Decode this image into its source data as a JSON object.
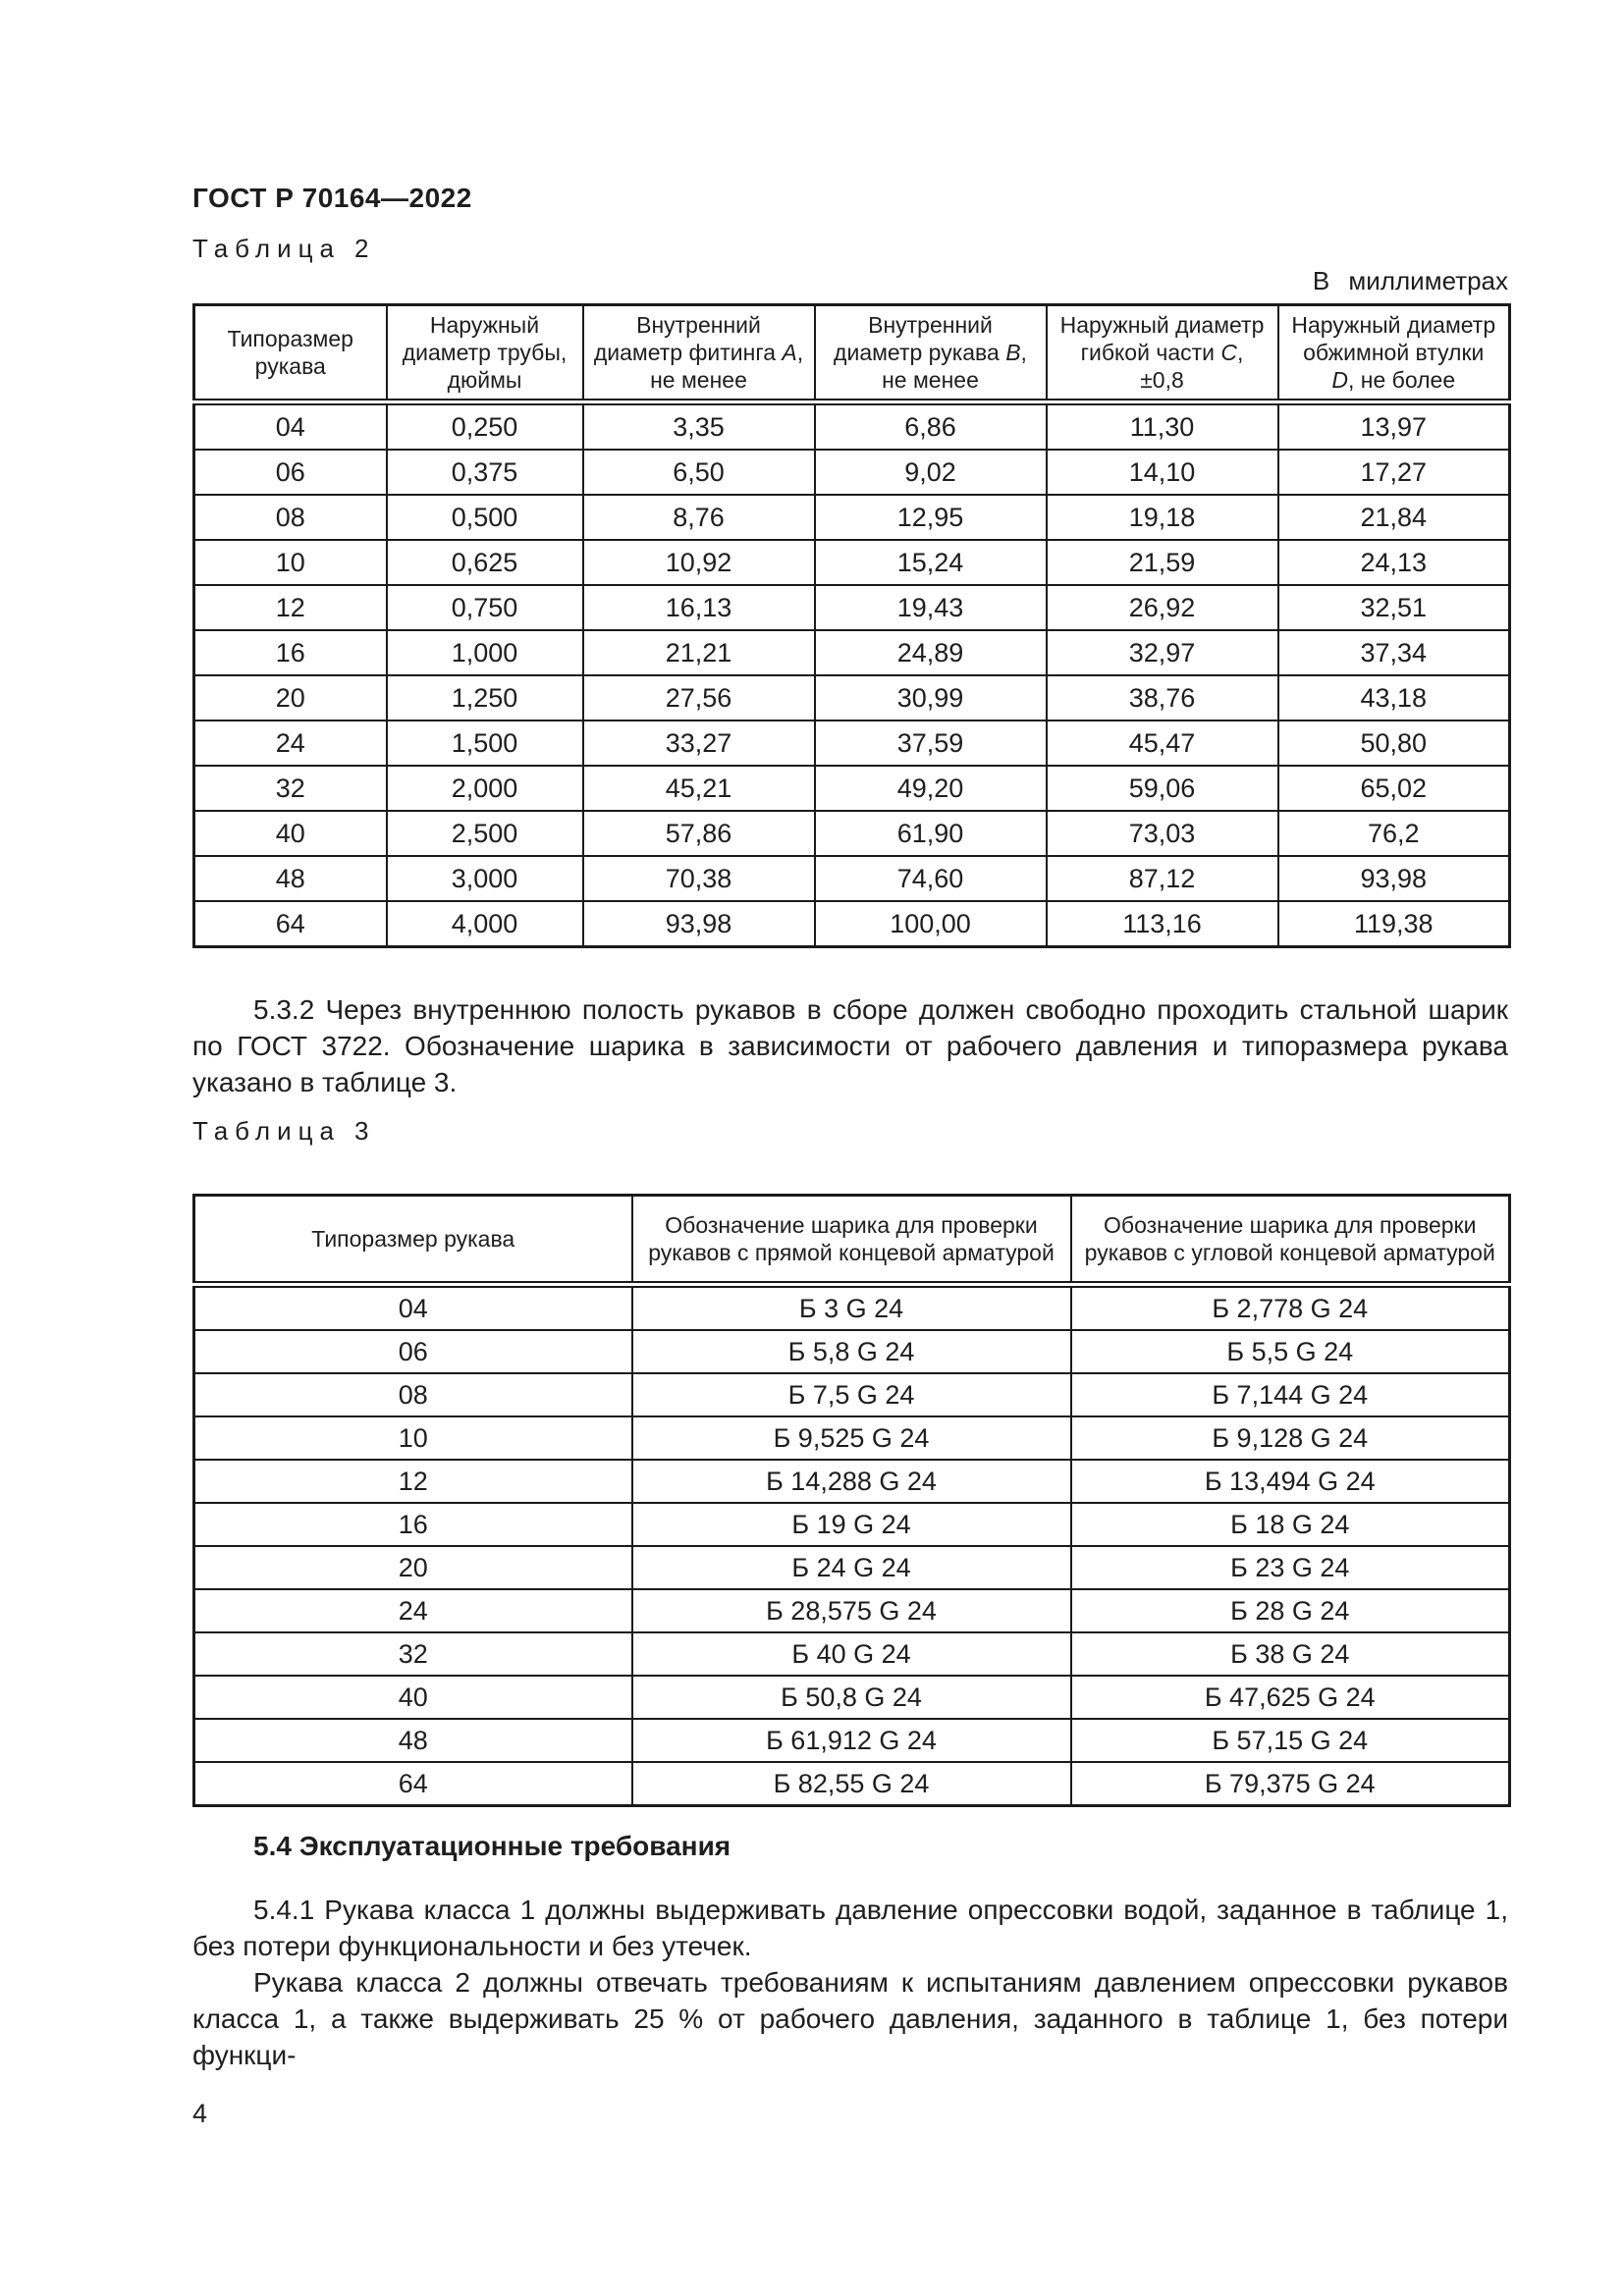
{
  "doc": {
    "number": "ГОСТ Р 70164—2022",
    "page_number": "4"
  },
  "table2": {
    "caption_word": "Таблица",
    "caption_number": "2",
    "units_note": "В миллиметрах",
    "headers": [
      [
        {
          "t": "Типоразмер рукава"
        }
      ],
      [
        {
          "t": "Наружный диаметр трубы, дюймы"
        }
      ],
      [
        {
          "t": "Внутренний диаметр фитинга "
        },
        {
          "t": "A",
          "i": true
        },
        {
          "t": ", не менее"
        }
      ],
      [
        {
          "t": "Внутренний диаметр рукава "
        },
        {
          "t": "B",
          "i": true
        },
        {
          "t": ", не менее"
        }
      ],
      [
        {
          "t": "Наружный диаметр гибкой части "
        },
        {
          "t": "C",
          "i": true
        },
        {
          "t": ","
        },
        {
          "br": true
        },
        {
          "t": "±0,8"
        }
      ],
      [
        {
          "t": "Наружный диаметр обжимной втулки"
        },
        {
          "br": true
        },
        {
          "t": "D",
          "i": true
        },
        {
          "t": ", не более"
        }
      ]
    ],
    "rows": [
      [
        "04",
        "0,250",
        "3,35",
        "6,86",
        "11,30",
        "13,97"
      ],
      [
        "06",
        "0,375",
        "6,50",
        "9,02",
        "14,10",
        "17,27"
      ],
      [
        "08",
        "0,500",
        "8,76",
        "12,95",
        "19,18",
        "21,84"
      ],
      [
        "10",
        "0,625",
        "10,92",
        "15,24",
        "21,59",
        "24,13"
      ],
      [
        "12",
        "0,750",
        "16,13",
        "19,43",
        "26,92",
        "32,51"
      ],
      [
        "16",
        "1,000",
        "21,21",
        "24,89",
        "32,97",
        "37,34"
      ],
      [
        "20",
        "1,250",
        "27,56",
        "30,99",
        "38,76",
        "43,18"
      ],
      [
        "24",
        "1,500",
        "33,27",
        "37,59",
        "45,47",
        "50,80"
      ],
      [
        "32",
        "2,000",
        "45,21",
        "49,20",
        "59,06",
        "65,02"
      ],
      [
        "40",
        "2,500",
        "57,86",
        "61,90",
        "73,03",
        "76,2"
      ],
      [
        "48",
        "3,000",
        "70,38",
        "74,60",
        "87,12",
        "93,98"
      ],
      [
        "64",
        "4,000",
        "93,98",
        "100,00",
        "113,16",
        "119,38"
      ]
    ]
  },
  "table3": {
    "caption_word": "Таблица",
    "caption_number": "3",
    "headers": [
      [
        {
          "t": "Типоразмер рукава"
        }
      ],
      [
        {
          "t": "Обозначение шарика для проверки рукавов с прямой концевой арматурой"
        }
      ],
      [
        {
          "t": "Обозначение шарика для проверки рукавов с угловой концевой арматурой"
        }
      ]
    ],
    "rows": [
      [
        "04",
        "Б 3 G 24",
        "Б 2,778 G 24"
      ],
      [
        "06",
        "Б 5,8 G 24",
        "Б 5,5 G 24"
      ],
      [
        "08",
        "Б 7,5 G 24",
        "Б 7,144 G 24"
      ],
      [
        "10",
        "Б 9,525 G 24",
        "Б 9,128 G 24"
      ],
      [
        "12",
        "Б 14,288 G 24",
        "Б 13,494 G 24"
      ],
      [
        "16",
        "Б 19 G 24",
        "Б 18 G 24"
      ],
      [
        "20",
        "Б 24 G 24",
        "Б 23 G 24"
      ],
      [
        "24",
        "Б 28,575 G 24",
        "Б 28 G 24"
      ],
      [
        "32",
        "Б 40 G 24",
        "Б 38 G 24"
      ],
      [
        "40",
        "Б 50,8 G 24",
        "Б 47,625 G 24"
      ],
      [
        "48",
        "Б 61,912 G 24",
        "Б 57,15 G 24"
      ],
      [
        "64",
        "Б 82,55 G 24",
        "Б 79,375 G 24"
      ]
    ]
  },
  "paragraphs": {
    "p532": "5.3.2 Через внутреннюю полость рукавов в сборе должен свободно проходить стальной шарик по ГОСТ 3722. Обозначение шарика в зависимости от рабочего давления и типоразмера рукава указано в таблице 3.",
    "h54": "5.4 Эксплуатационные требования",
    "p541": "5.4.1 Рукава класса 1 должны выдерживать давление опрессовки водой, заданное в таблице 1, без потери функциональности и без утечек.",
    "p541_cont": "Рукава класса 2 должны отвечать требованиям к испытаниям давлением опрессовки рукавов класса 1, а также выдерживать 25 % от рабочего давления, заданного в таблице 1, без потери функци-"
  }
}
